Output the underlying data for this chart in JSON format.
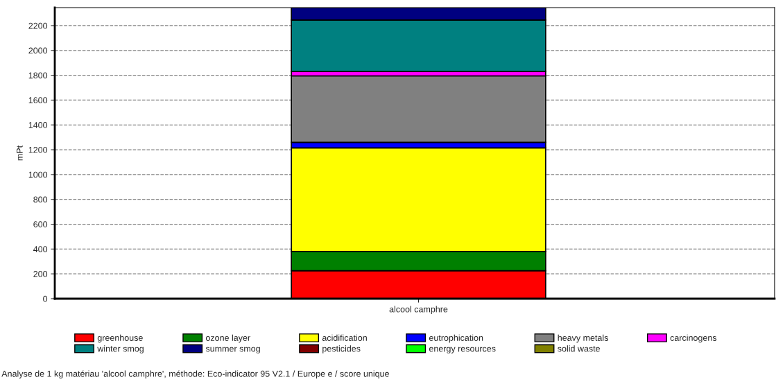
{
  "chart_data": {
    "type": "bar",
    "stacked": true,
    "ylabel": "mPt",
    "categories": [
      "alcool camphre"
    ],
    "series": [
      {
        "name": "greenhouse",
        "color": "#ff0000",
        "values": [
          225
        ]
      },
      {
        "name": "ozone layer",
        "color": "#008000",
        "values": [
          155
        ]
      },
      {
        "name": "acidification",
        "color": "#ffff00",
        "values": [
          835
        ]
      },
      {
        "name": "eutrophication",
        "color": "#0000ff",
        "values": [
          45
        ]
      },
      {
        "name": "heavy metals",
        "color": "#808080",
        "values": [
          535
        ]
      },
      {
        "name": "carcinogens",
        "color": "#ff00ff",
        "values": [
          35
        ]
      },
      {
        "name": "winter smog",
        "color": "#008080",
        "values": [
          415
        ]
      },
      {
        "name": "summer smog",
        "color": "#000080",
        "values": [
          100
        ]
      },
      {
        "name": "pesticides",
        "color": "#800000",
        "values": [
          0
        ]
      },
      {
        "name": "energy resources",
        "color": "#00ff00",
        "values": [
          0
        ]
      },
      {
        "name": "solid waste",
        "color": "#808000",
        "values": [
          0
        ]
      }
    ],
    "ylim": [
      0,
      2345
    ],
    "yticks": [
      0,
      200,
      400,
      600,
      800,
      1000,
      1200,
      1400,
      1600,
      1800,
      2000,
      2200
    ],
    "grid": "y",
    "legend": "bottom",
    "annotations": [
      "Analyse de 1 kg matériau 'alcool camphre', méthode: Eco-indicator 95 V2.1 / Europe e / score unique"
    ]
  }
}
